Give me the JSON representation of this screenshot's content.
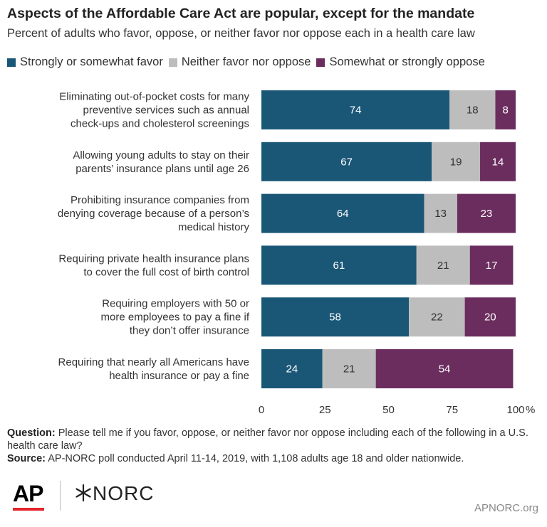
{
  "title": "Aspects of the Affordable Care Act are popular, except for the mandate",
  "subtitle": "Percent of adults who favor, oppose, or neither favor nor oppose each in a health care law",
  "colors": {
    "favor": "#1a5777",
    "neither": "#bdbdbd",
    "oppose": "#6b2d5e"
  },
  "footer": {
    "question_label": "Question:",
    "question_text": "Please tell me if you favor, oppose, or neither favor nor oppose including each of the following in a U.S. health care law?",
    "source_label": "Source:",
    "source_text": "AP-NORC poll conducted April 11-14, 2019, with 1,108 adults age 18 and older nationwide."
  },
  "logos": {
    "ap": "AP",
    "norc": "NORC",
    "norc_mark": "asterisk-icon"
  },
  "site_url": "APNORC.org",
  "chart_data": {
    "type": "bar",
    "orientation": "horizontal",
    "stacked": true,
    "categories": [
      [
        "Eliminating out-of-pocket costs for many",
        "preventive services such as annual",
        "check-ups and cholesterol screenings"
      ],
      [
        "Allowing young adults to stay on their",
        "parents’ insurance plans until age 26"
      ],
      [
        "Prohibiting insurance companies from",
        "denying coverage because of a person’s",
        "medical history"
      ],
      [
        "Requiring private health insurance plans",
        "to cover the full cost of birth control"
      ],
      [
        "Requiring employers with 50 or",
        "more employees to pay a fine if",
        "they don’t offer insurance"
      ],
      [
        "Requiring that nearly all Americans have",
        "health insurance or pay a fine"
      ]
    ],
    "series": [
      {
        "name": "Strongly or somewhat favor",
        "color": "#1a5777",
        "label_color": "#ffffff",
        "values": [
          74,
          67,
          64,
          61,
          58,
          24
        ]
      },
      {
        "name": "Neither favor nor oppose",
        "color": "#bdbdbd",
        "label_color": "#333333",
        "values": [
          18,
          19,
          13,
          21,
          22,
          21
        ]
      },
      {
        "name": "Somewhat or strongly oppose",
        "color": "#6b2d5e",
        "label_color": "#ffffff",
        "values": [
          8,
          14,
          23,
          17,
          20,
          54
        ]
      }
    ],
    "xlim": [
      0,
      100
    ],
    "xticks": [
      0,
      25,
      50,
      75,
      100
    ],
    "xtick_labels": [
      "0",
      "25",
      "50",
      "75",
      "100"
    ],
    "x_unit": "%",
    "legend_position": "top",
    "grid": false
  }
}
